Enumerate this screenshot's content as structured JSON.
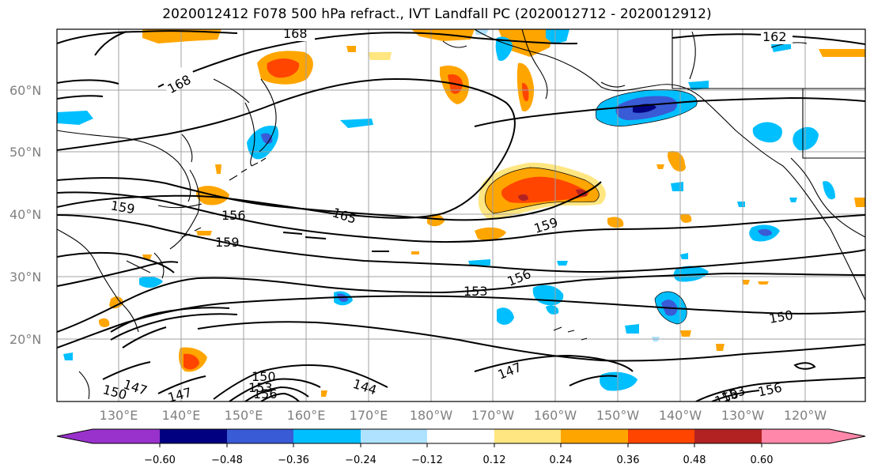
{
  "title": "2020012412 F078 500 hPa refract., IVT Landfall PC (2020012712 - 2020012912)",
  "map": {
    "lat_labels": [
      "60°N",
      "50°N",
      "40°N",
      "30°N",
      "20°N"
    ],
    "lon_labels": [
      "130°E",
      "140°E",
      "150°E",
      "160°E",
      "170°E",
      "180°W",
      "170°W",
      "160°W",
      "150°W",
      "140°W",
      "130°W",
      "120°W"
    ],
    "contour_labels": [
      "168",
      "168",
      "162",
      "165",
      "159",
      "156",
      "159",
      "159",
      "156",
      "153",
      "150",
      "147",
      "144",
      "147",
      "147",
      "150",
      "150",
      "153",
      "156",
      "156",
      "153",
      "150"
    ],
    "colors": {
      "blue_fill": "#00bfff",
      "light_blue_fill": "#aee2ff",
      "medium_blue_fill": "#3a5bd6",
      "yellow_fill": "#ffe680",
      "orange_fill": "#ffa500",
      "red_orange_fill": "#ff4500",
      "dark_red_fill": "#b22222",
      "contour_line": "#000000",
      "grid_line": "#a0a0a0"
    }
  },
  "colorbar": {
    "ticks": [
      "−0.60",
      "−0.48",
      "−0.36",
      "−0.24",
      "−0.12",
      "0.12",
      "0.24",
      "0.36",
      "0.48",
      "0.60"
    ],
    "colors": [
      "#9932cc",
      "#000080",
      "#3a5bd6",
      "#00bfff",
      "#aee2ff",
      "#ffffff",
      "#ffe680",
      "#ffa500",
      "#ff4500",
      "#b22222",
      "#ff88aa"
    ]
  }
}
